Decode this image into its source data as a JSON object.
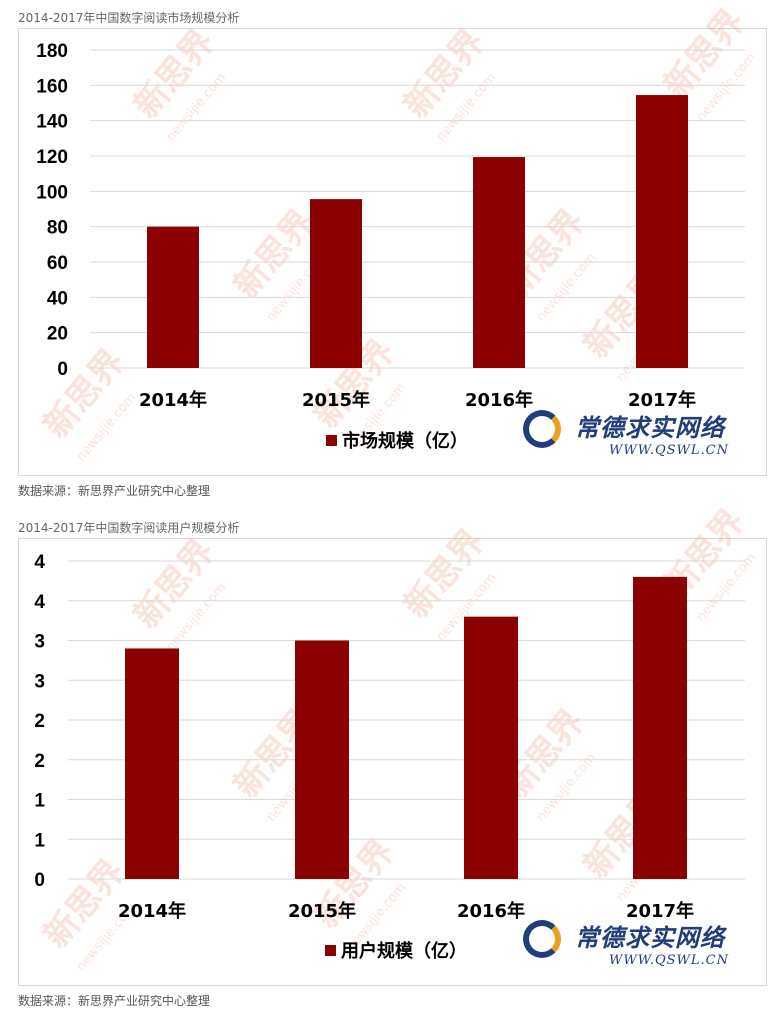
{
  "charts_meta": [
    {
      "title": "2014-2017年中国数字阅读市场规模分析",
      "source": "数据来源：新思界产业研究中心整理"
    },
    {
      "title": "2014-2017年中国数字阅读用户规模分析",
      "source": "数据来源：新思界产业研究中心整理"
    }
  ],
  "watermark": {
    "brand": "新思界",
    "url": "newsijie.com",
    "logo_cn": "常德求实网络",
    "logo_en": "WWW.QSWL.CN"
  },
  "chart_data": [
    {
      "type": "bar",
      "title": "2014-2017年中国数字阅读市场规模分析",
      "categories": [
        "2014年",
        "2015年",
        "2016年",
        "2017年"
      ],
      "series": [
        {
          "name": "市场规模（亿）",
          "values": [
            80,
            95.6,
            119.4,
            154.5
          ],
          "color": "#8b0000"
        }
      ],
      "ylim": [
        0,
        180
      ],
      "yticks": [
        0,
        20,
        40,
        60,
        80,
        100,
        120,
        140,
        160,
        180
      ],
      "ytick_labels": [
        "0",
        "20",
        "40",
        "60",
        "80",
        "100",
        "120",
        "140",
        "160",
        "180"
      ],
      "grid": true,
      "legend": "bottom"
    },
    {
      "type": "bar",
      "title": "2014-2017年中国数字阅读用户规模分析",
      "categories": [
        "2014年",
        "2015年",
        "2016年",
        "2017年"
      ],
      "series": [
        {
          "name": "用户规模（亿）",
          "values": [
            2.9,
            3.0,
            3.3,
            3.8
          ],
          "color": "#8b0000"
        }
      ],
      "ylim": [
        0,
        4
      ],
      "yticks": [
        0,
        0.5,
        1,
        1.5,
        2,
        2.5,
        3,
        3.5,
        4
      ],
      "ytick_labels": [
        "0",
        "1",
        "1",
        "2",
        "2",
        "3",
        "3",
        "4",
        "4"
      ],
      "grid": true,
      "legend": "bottom"
    }
  ]
}
